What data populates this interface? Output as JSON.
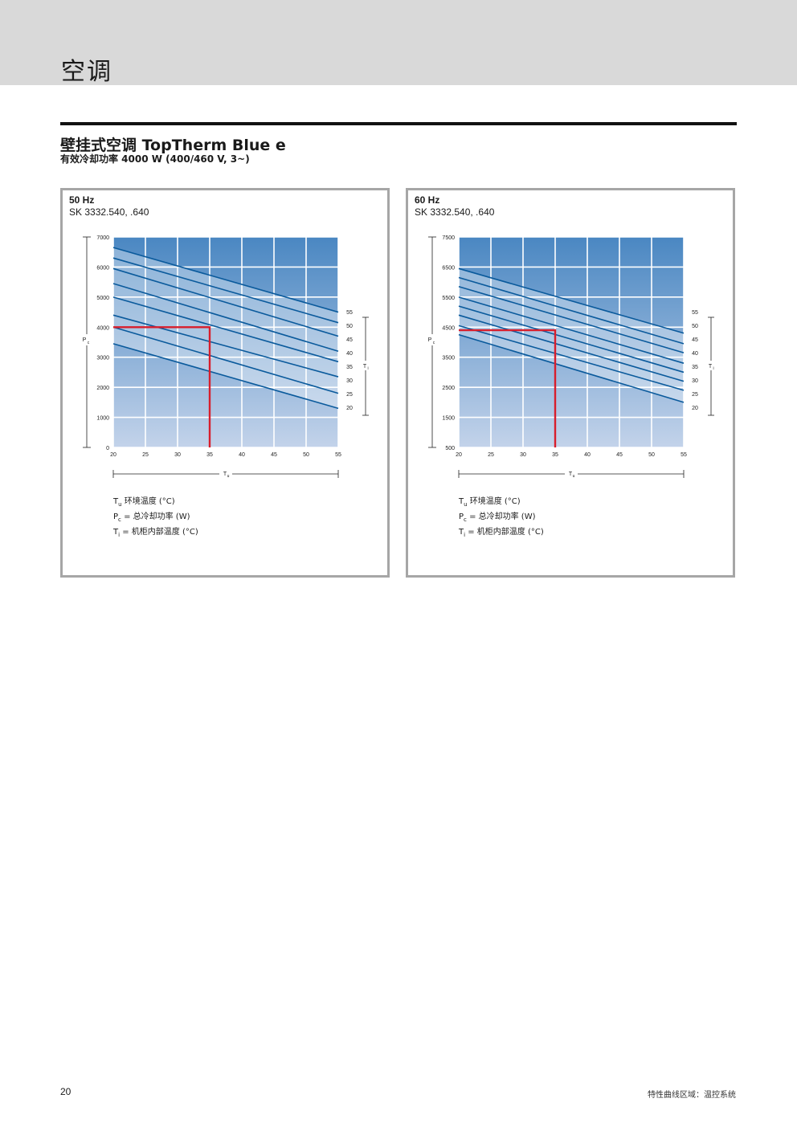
{
  "header": {
    "title": "空调"
  },
  "product": {
    "title": "壁挂式空调 TopTherm Blue e",
    "subtitle": "有效冷却功率 4000 W (400/460 V, 3~)"
  },
  "legend": {
    "tu_symbol": "T",
    "tu_sub": "u",
    "tu_text": " 环境温度 (°C)",
    "pc_symbol": "P",
    "pc_sub": "c",
    "pc_text": " = 总冷却功率 (W)",
    "ti_symbol": "T",
    "ti_sub": "i",
    "ti_text": "  = 机柜内部温度 (°C)"
  },
  "panels": [
    {
      "frequency": "50 Hz",
      "model": "SK 3332.540, .640"
    },
    {
      "frequency": "60 Hz",
      "model": "SK 3332.540, .640"
    }
  ],
  "chart_data": [
    {
      "type": "line",
      "title": "50 Hz",
      "subtitle": "SK 3332.540, .640",
      "xlabel": "Tu",
      "ylabel": "Pc",
      "zlabel": "Ti",
      "xlim": [
        20,
        55
      ],
      "ylim": [
        0,
        7000
      ],
      "x_ticks": [
        20,
        25,
        30,
        35,
        40,
        45,
        50,
        55
      ],
      "y_ticks": [
        0,
        1000,
        2000,
        3000,
        4000,
        5000,
        6000,
        7000
      ],
      "grid": true,
      "colors": {
        "line": "#0a5a9c",
        "marker": "#d81e2c",
        "band_top": "#4a87c2",
        "band_bottom": "#c3d3ea"
      },
      "series": [
        {
          "name": "55",
          "x": [
            20,
            55
          ],
          "y": [
            6650,
            4500
          ]
        },
        {
          "name": "50",
          "x": [
            20,
            55
          ],
          "y": [
            6300,
            4150
          ]
        },
        {
          "name": "45",
          "x": [
            20,
            55
          ],
          "y": [
            5950,
            3700
          ]
        },
        {
          "name": "40",
          "x": [
            20,
            55
          ],
          "y": [
            5450,
            3200
          ]
        },
        {
          "name": "35",
          "x": [
            20,
            55
          ],
          "y": [
            5000,
            2850
          ]
        },
        {
          "name": "30",
          "x": [
            20,
            55
          ],
          "y": [
            4400,
            2350
          ]
        },
        {
          "name": "25",
          "x": [
            20,
            55
          ],
          "y": [
            4000,
            1800
          ]
        },
        {
          "name": "20",
          "x": [
            20,
            55
          ],
          "y": [
            3450,
            1300
          ]
        }
      ],
      "reference": {
        "x": 35,
        "y": 4000
      },
      "ti_labels": [
        "55",
        "50",
        "45",
        "40",
        "35",
        "30",
        "25",
        "20"
      ]
    },
    {
      "type": "line",
      "title": "60 Hz",
      "subtitle": "SK 3332.540, .640",
      "xlabel": "Tu",
      "ylabel": "Pc",
      "zlabel": "Ti",
      "xlim": [
        20,
        55
      ],
      "ylim": [
        500,
        7500
      ],
      "x_ticks": [
        20,
        25,
        30,
        35,
        40,
        45,
        50,
        55
      ],
      "y_ticks": [
        500,
        1500,
        2500,
        3500,
        4500,
        5500,
        6500,
        7500
      ],
      "grid": true,
      "colors": {
        "line": "#0a5a9c",
        "marker": "#d81e2c",
        "band_top": "#4a87c2",
        "band_bottom": "#c3d3ea"
      },
      "series": [
        {
          "name": "55",
          "x": [
            20,
            55
          ],
          "y": [
            6450,
            4300
          ]
        },
        {
          "name": "50",
          "x": [
            20,
            55
          ],
          "y": [
            6150,
            3950
          ]
        },
        {
          "name": "45",
          "x": [
            20,
            55
          ],
          "y": [
            5850,
            3650
          ]
        },
        {
          "name": "40",
          "x": [
            20,
            55
          ],
          "y": [
            5500,
            3300
          ]
        },
        {
          "name": "35",
          "x": [
            20,
            55
          ],
          "y": [
            5200,
            3000
          ]
        },
        {
          "name": "30",
          "x": [
            20,
            55
          ],
          "y": [
            4900,
            2700
          ]
        },
        {
          "name": "25",
          "x": [
            20,
            55
          ],
          "y": [
            4550,
            2400
          ]
        },
        {
          "name": "20",
          "x": [
            20,
            55
          ],
          "y": [
            4250,
            2000
          ]
        }
      ],
      "reference": {
        "x": 35,
        "y": 4400
      },
      "ti_labels": [
        "55",
        "50",
        "45",
        "40",
        "35",
        "30",
        "25",
        "20"
      ]
    }
  ],
  "footer": {
    "page": "20",
    "text": "特性曲线区域：温控系统"
  }
}
